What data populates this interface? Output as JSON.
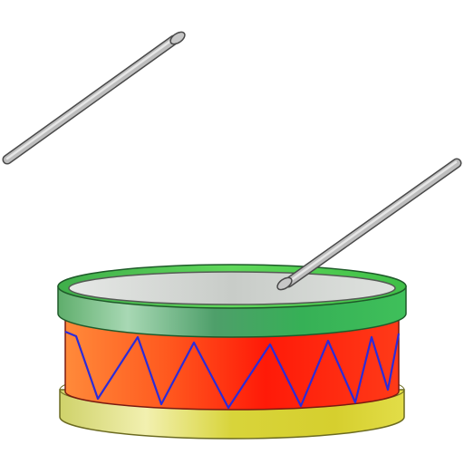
{
  "illustration": {
    "subject": "drum-with-sticks",
    "colors": {
      "background": "#ffffff",
      "top_hoop": "#4fb86a",
      "top_hoop_highlight": "#9fe0a0",
      "bottom_hoop": "#d9d23a",
      "bottom_hoop_highlight": "#f4f0a0",
      "shell": "#ff2a10",
      "shell_highlight": "#ff7a30",
      "drumhead": "#cfd3cf",
      "tension_cord": "#2b2bd9",
      "stick": "#b8b8b8",
      "stick_outline": "#555555"
    }
  }
}
